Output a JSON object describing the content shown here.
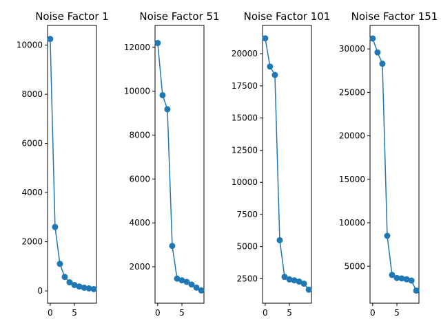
{
  "chart_data": [
    {
      "type": "line",
      "title": "Noise Factor 1",
      "x": [
        0,
        1,
        2,
        3,
        4,
        5,
        6,
        7,
        8,
        9
      ],
      "series": [
        {
          "values": [
            10250,
            2600,
            1100,
            570,
            350,
            240,
            180,
            130,
            100,
            75
          ],
          "color": "#1f77b4",
          "marker": "circle"
        }
      ],
      "xlim": [
        -0.55,
        9.55
      ],
      "ylim": [
        -500,
        10800
      ],
      "xticks": [
        0,
        5
      ],
      "xtick_labels": [
        "0",
        "5"
      ],
      "yticks": [
        0,
        2000,
        4000,
        6000,
        8000,
        10000
      ],
      "ytick_labels": [
        "0",
        "2000",
        "4000",
        "6000",
        "8000",
        "10000"
      ],
      "grid": false
    },
    {
      "type": "line",
      "title": "Noise Factor 51",
      "x": [
        0,
        1,
        2,
        3,
        4,
        5,
        6,
        7,
        8,
        9
      ],
      "series": [
        {
          "values": [
            12200,
            9820,
            9180,
            2950,
            1460,
            1380,
            1310,
            1190,
            1050,
            920
          ],
          "color": "#1f77b4",
          "marker": "circle"
        }
      ],
      "xlim": [
        -0.55,
        9.55
      ],
      "ylim": [
        340,
        13000
      ],
      "xticks": [
        0,
        5
      ],
      "xtick_labels": [
        "0",
        "5"
      ],
      "yticks": [
        2000,
        4000,
        6000,
        8000,
        10000,
        12000
      ],
      "ytick_labels": [
        "2000",
        "4000",
        "6000",
        "8000",
        "10000",
        "12000"
      ],
      "grid": false
    },
    {
      "type": "line",
      "title": "Noise Factor 101",
      "x": [
        0,
        1,
        2,
        3,
        4,
        5,
        6,
        7,
        8,
        9
      ],
      "series": [
        {
          "values": [
            21200,
            19000,
            18350,
            5500,
            2650,
            2450,
            2380,
            2280,
            2120,
            1650
          ],
          "color": "#1f77b4",
          "marker": "circle"
        }
      ],
      "xlim": [
        -0.55,
        9.55
      ],
      "ylim": [
        600,
        22200
      ],
      "xticks": [
        0,
        5
      ],
      "xtick_labels": [
        "0",
        "5"
      ],
      "yticks": [
        2500,
        5000,
        7500,
        10000,
        12500,
        15000,
        17500,
        20000
      ],
      "ytick_labels": [
        "2500",
        "5000",
        "7500",
        "10000",
        "12500",
        "15000",
        "17500",
        "20000"
      ],
      "grid": false
    },
    {
      "type": "line",
      "title": "Noise Factor 151",
      "x": [
        0,
        1,
        2,
        3,
        4,
        5,
        6,
        7,
        8,
        9
      ],
      "series": [
        {
          "values": [
            31200,
            29600,
            28300,
            8500,
            4000,
            3650,
            3600,
            3500,
            3350,
            2200
          ],
          "color": "#1f77b4",
          "marker": "circle"
        }
      ],
      "xlim": [
        -0.55,
        9.55
      ],
      "ylim": [
        750,
        32700
      ],
      "xticks": [
        0,
        5
      ],
      "xtick_labels": [
        "0",
        "5"
      ],
      "yticks": [
        5000,
        10000,
        15000,
        20000,
        25000,
        30000
      ],
      "ytick_labels": [
        "5000",
        "10000",
        "15000",
        "20000",
        "25000",
        "30000"
      ],
      "grid": false
    }
  ]
}
